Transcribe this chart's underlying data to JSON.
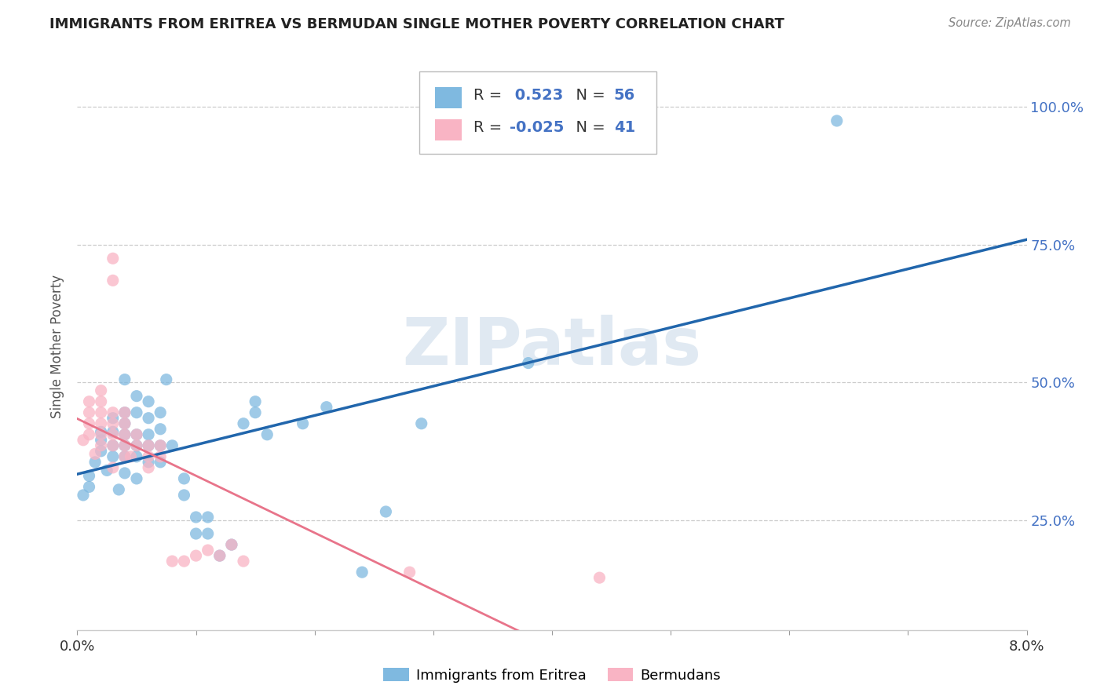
{
  "title": "IMMIGRANTS FROM ERITREA VS BERMUDAN SINGLE MOTHER POVERTY CORRELATION CHART",
  "source": "Source: ZipAtlas.com",
  "ylabel": "Single Mother Poverty",
  "ytick_labels": [
    "25.0%",
    "50.0%",
    "75.0%",
    "100.0%"
  ],
  "ytick_values": [
    0.25,
    0.5,
    0.75,
    1.0
  ],
  "xlim": [
    0.0,
    0.08
  ],
  "ylim": [
    0.05,
    1.08
  ],
  "legend_blue_R": "0.523",
  "legend_blue_N": "56",
  "legend_pink_R": "-0.025",
  "legend_pink_N": "41",
  "blue_color": "#7fb9e0",
  "pink_color": "#f9b4c4",
  "line_blue": "#2166ac",
  "line_pink": "#e8748a",
  "watermark": "ZIPatlas",
  "scatter_blue": [
    [
      0.0005,
      0.295
    ],
    [
      0.001,
      0.31
    ],
    [
      0.001,
      0.33
    ],
    [
      0.0015,
      0.355
    ],
    [
      0.002,
      0.375
    ],
    [
      0.002,
      0.395
    ],
    [
      0.002,
      0.41
    ],
    [
      0.0025,
      0.34
    ],
    [
      0.003,
      0.365
    ],
    [
      0.003,
      0.385
    ],
    [
      0.003,
      0.41
    ],
    [
      0.003,
      0.435
    ],
    [
      0.0035,
      0.305
    ],
    [
      0.004,
      0.335
    ],
    [
      0.004,
      0.365
    ],
    [
      0.004,
      0.385
    ],
    [
      0.004,
      0.405
    ],
    [
      0.004,
      0.425
    ],
    [
      0.004,
      0.445
    ],
    [
      0.004,
      0.505
    ],
    [
      0.005,
      0.325
    ],
    [
      0.005,
      0.365
    ],
    [
      0.005,
      0.385
    ],
    [
      0.005,
      0.405
    ],
    [
      0.005,
      0.445
    ],
    [
      0.005,
      0.475
    ],
    [
      0.006,
      0.355
    ],
    [
      0.006,
      0.385
    ],
    [
      0.006,
      0.405
    ],
    [
      0.006,
      0.435
    ],
    [
      0.006,
      0.465
    ],
    [
      0.007,
      0.355
    ],
    [
      0.007,
      0.385
    ],
    [
      0.007,
      0.415
    ],
    [
      0.007,
      0.445
    ],
    [
      0.0075,
      0.505
    ],
    [
      0.008,
      0.385
    ],
    [
      0.009,
      0.295
    ],
    [
      0.009,
      0.325
    ],
    [
      0.01,
      0.225
    ],
    [
      0.01,
      0.255
    ],
    [
      0.011,
      0.225
    ],
    [
      0.011,
      0.255
    ],
    [
      0.012,
      0.185
    ],
    [
      0.013,
      0.205
    ],
    [
      0.014,
      0.425
    ],
    [
      0.015,
      0.445
    ],
    [
      0.015,
      0.465
    ],
    [
      0.016,
      0.405
    ],
    [
      0.019,
      0.425
    ],
    [
      0.021,
      0.455
    ],
    [
      0.024,
      0.155
    ],
    [
      0.026,
      0.265
    ],
    [
      0.029,
      0.425
    ],
    [
      0.038,
      0.535
    ],
    [
      0.064,
      0.975
    ]
  ],
  "scatter_pink": [
    [
      0.0005,
      0.395
    ],
    [
      0.001,
      0.405
    ],
    [
      0.001,
      0.425
    ],
    [
      0.001,
      0.445
    ],
    [
      0.001,
      0.465
    ],
    [
      0.0015,
      0.37
    ],
    [
      0.002,
      0.385
    ],
    [
      0.002,
      0.405
    ],
    [
      0.002,
      0.425
    ],
    [
      0.002,
      0.445
    ],
    [
      0.002,
      0.465
    ],
    [
      0.002,
      0.485
    ],
    [
      0.003,
      0.345
    ],
    [
      0.003,
      0.385
    ],
    [
      0.003,
      0.405
    ],
    [
      0.003,
      0.425
    ],
    [
      0.003,
      0.445
    ],
    [
      0.003,
      0.685
    ],
    [
      0.003,
      0.725
    ],
    [
      0.004,
      0.365
    ],
    [
      0.004,
      0.385
    ],
    [
      0.004,
      0.405
    ],
    [
      0.004,
      0.425
    ],
    [
      0.004,
      0.445
    ],
    [
      0.0045,
      0.365
    ],
    [
      0.005,
      0.385
    ],
    [
      0.005,
      0.405
    ],
    [
      0.006,
      0.385
    ],
    [
      0.006,
      0.345
    ],
    [
      0.006,
      0.365
    ],
    [
      0.007,
      0.365
    ],
    [
      0.007,
      0.385
    ],
    [
      0.008,
      0.175
    ],
    [
      0.009,
      0.175
    ],
    [
      0.01,
      0.185
    ],
    [
      0.011,
      0.195
    ],
    [
      0.012,
      0.185
    ],
    [
      0.013,
      0.205
    ],
    [
      0.014,
      0.175
    ],
    [
      0.028,
      0.155
    ],
    [
      0.044,
      0.145
    ]
  ]
}
